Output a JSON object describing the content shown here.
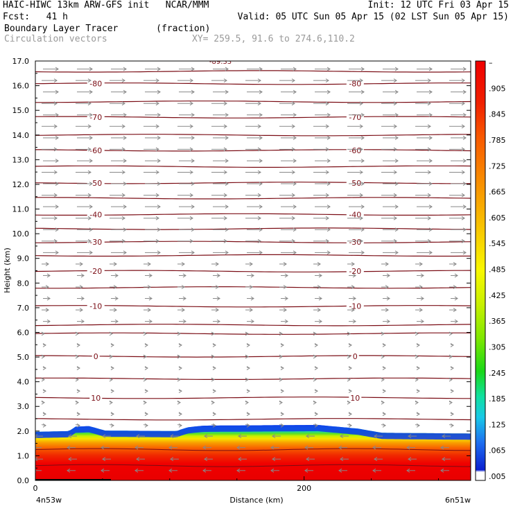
{
  "header": {
    "line1_left": "HAIC-HIWC 13km ARW-GFS init   NCAR/MMM",
    "line1_right": "Init: 12 UTC Fri 03 Apr 15",
    "line2_left": "Fcst:   41 h",
    "line2_right": "Valid: 05 UTC Sun 05 Apr 15 (02 LST Sun 05 Apr 15)",
    "line3_left": "Boundary Layer Tracer       (fraction)",
    "line4_left": "Circulation vectors",
    "line4_right": "XY= 259.5, 91.6 to 274.6,110.2"
  },
  "chart_data": {
    "type": "heatmap",
    "title": "Boundary Layer Tracer",
    "xlabel": "Distance (km)",
    "ylabel": "Height (km)",
    "xlim": [
      0,
      324
    ],
    "ylim": [
      0,
      17
    ],
    "x_ticks": [
      "0",
      "200"
    ],
    "x_end_labels": [
      "4n53w",
      "6n51w"
    ],
    "y_ticks": [
      "0.0",
      "1.0",
      "2.0",
      "3.0",
      "4.0",
      "5.0",
      "6.0",
      "7.0",
      "8.0",
      "9.0",
      "10.0",
      "11.0",
      "12.0",
      "13.0",
      "14.0",
      "15.0",
      "16.0",
      "17.0"
    ],
    "colorbar_labels": [
      ".005",
      ".065",
      ".125",
      ".185",
      ".245",
      ".305",
      ".365",
      ".425",
      ".485",
      ".545",
      ".605",
      ".665",
      ".725",
      ".785",
      ".845",
      ".905",
      "–"
    ],
    "colors": [
      "#ffffff",
      "#0a2bd8",
      "#1f6cf0",
      "#18c8e8",
      "#10e0a0",
      "#18d818",
      "#80e800",
      "#c8f000",
      "#f8f800",
      "#f8d000",
      "#f8a800",
      "#f88000",
      "#f85800",
      "#f02000",
      "#f00000"
    ],
    "isotherms_labeled": [
      {
        "value": "-80",
        "height": 16.08
      },
      {
        "value": "-70",
        "height": 14.72
      },
      {
        "value": "-60",
        "height": 13.38
      },
      {
        "value": "-50",
        "height": 12.06
      },
      {
        "value": "-40",
        "height": 10.78
      },
      {
        "value": "-30",
        "height": 9.66
      },
      {
        "value": "-20",
        "height": 8.48
      },
      {
        "value": "-10",
        "height": 7.06
      },
      {
        "value": "0",
        "height": 5.03
      },
      {
        "value": "10",
        "height": 3.35
      }
    ],
    "isotherm_label_top": "-89.33",
    "extra_isotherm_heights": [
      16.58,
      15.35,
      14.0,
      12.72,
      11.44,
      10.2,
      9.12,
      7.82,
      6.3,
      5.95,
      4.12,
      2.48
    ],
    "bl_top_heights": [
      {
        "x": 0,
        "h": 1.97
      },
      {
        "x": 25,
        "h": 2.0
      },
      {
        "x": 30,
        "h": 2.18
      },
      {
        "x": 40,
        "h": 2.2
      },
      {
        "x": 52,
        "h": 2.02
      },
      {
        "x": 105,
        "h": 2.0
      },
      {
        "x": 113,
        "h": 2.15
      },
      {
        "x": 125,
        "h": 2.22
      },
      {
        "x": 210,
        "h": 2.25
      },
      {
        "x": 240,
        "h": 2.1
      },
      {
        "x": 258,
        "h": 1.93
      },
      {
        "x": 324,
        "h": 1.9
      }
    ]
  }
}
